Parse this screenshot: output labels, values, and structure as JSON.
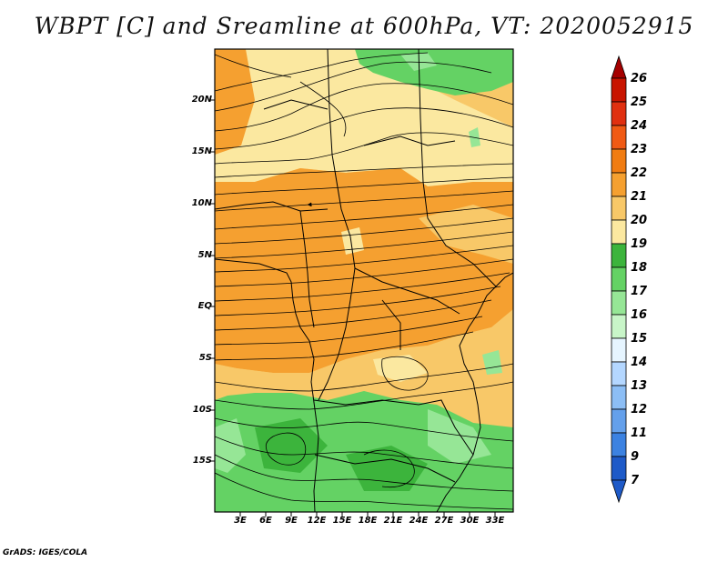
{
  "title": "WBPT [C] and Sreamline at 600hPa, VT: 2020052915",
  "credit": "GrADS: IGES/COLA",
  "lat_ticks": [
    "20N",
    "15N",
    "10N",
    "5N",
    "EQ",
    "5S",
    "10S",
    "15S"
  ],
  "lon_ticks": [
    "3E",
    "6E",
    "9E",
    "12E",
    "15E",
    "18E",
    "21E",
    "24E",
    "27E",
    "30E",
    "33E"
  ],
  "colorbar": {
    "levels": [
      "26",
      "25",
      "24",
      "23",
      "22",
      "21",
      "20",
      "19",
      "18",
      "17",
      "16",
      "15",
      "14",
      "13",
      "12",
      "11",
      "9",
      "7"
    ],
    "colors": [
      "#a50000",
      "#c81400",
      "#e03010",
      "#f05a14",
      "#f07c12",
      "#f5a030",
      "#f8c868",
      "#fbe8a0",
      "#3cb43c",
      "#64d264",
      "#96e696",
      "#c8f5c8",
      "#e6f5ff",
      "#b4d7ff",
      "#8cbef5",
      "#64a0eb",
      "#3c82e1",
      "#1e5ac8"
    ],
    "top_arrow_color": "#a50000",
    "bottom_arrow_color": "#1e5ac8"
  },
  "field_colors": {
    "cool_yellow": "#fbe8a0",
    "light_orange": "#f8c868",
    "orange": "#f5a030",
    "green": "#64d264",
    "dark_green": "#3cb43c",
    "light_green": "#96e696",
    "streamline": "#000000"
  }
}
